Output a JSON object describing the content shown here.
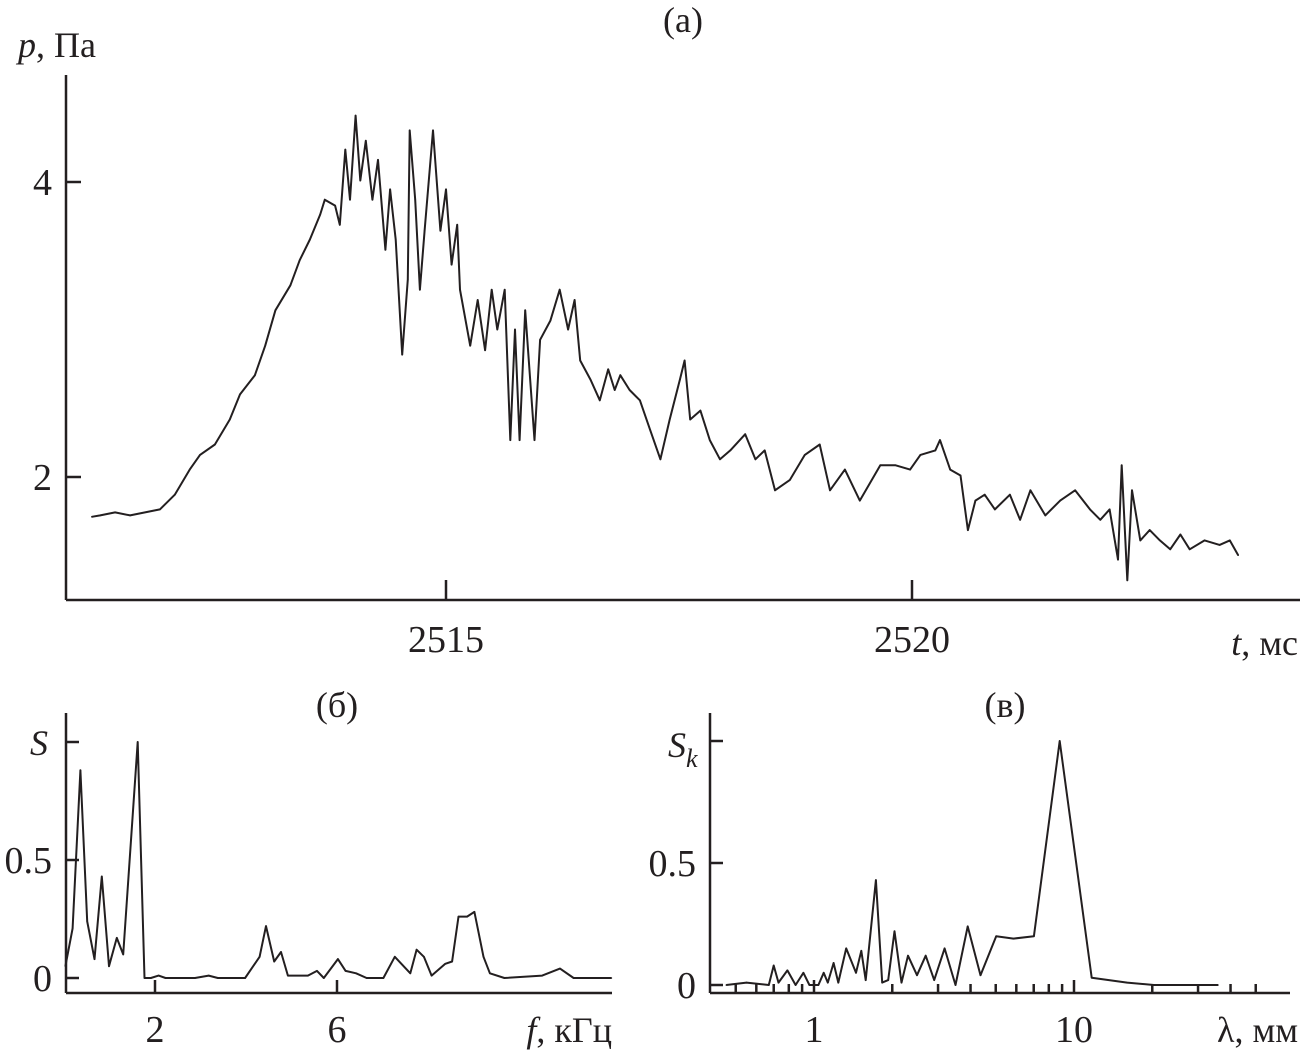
{
  "chart_data": [
    {
      "id": "a",
      "type": "line",
      "title": "(a)",
      "xlabel": {
        "var": "t",
        "unit": ", мс"
      },
      "ylabel": {
        "var": "p",
        "unit": ", Па"
      },
      "xlim": [
        2510.92,
        2524.16
      ],
      "ylim": [
        1.17,
        4.73
      ],
      "xticks": [
        2515,
        2520
      ],
      "yticks": [
        2,
        4
      ],
      "grid": false,
      "color": "#231f20",
      "points": [
        [
          2511.2,
          1.73
        ],
        [
          2511.29,
          1.74
        ],
        [
          2511.45,
          1.76
        ],
        [
          2511.61,
          1.74
        ],
        [
          2511.93,
          1.78
        ],
        [
          2512.09,
          1.88
        ],
        [
          2512.25,
          2.05
        ],
        [
          2512.36,
          2.15
        ],
        [
          2512.52,
          2.22
        ],
        [
          2512.68,
          2.39
        ],
        [
          2512.79,
          2.56
        ],
        [
          2512.95,
          2.69
        ],
        [
          2513.06,
          2.89
        ],
        [
          2513.17,
          3.13
        ],
        [
          2513.33,
          3.3
        ],
        [
          2513.43,
          3.47
        ],
        [
          2513.54,
          3.61
        ],
        [
          2513.65,
          3.78
        ],
        [
          2513.7,
          3.88
        ],
        [
          2513.81,
          3.84
        ],
        [
          2513.86,
          3.71
        ],
        [
          2513.92,
          4.22
        ],
        [
          2513.97,
          3.88
        ],
        [
          2514.03,
          4.45
        ],
        [
          2514.08,
          4.01
        ],
        [
          2514.14,
          4.28
        ],
        [
          2514.21,
          3.88
        ],
        [
          2514.27,
          4.15
        ],
        [
          2514.35,
          3.54
        ],
        [
          2514.4,
          3.95
        ],
        [
          2514.46,
          3.61
        ],
        [
          2514.53,
          2.83
        ],
        [
          2514.59,
          3.34
        ],
        [
          2514.61,
          4.35
        ],
        [
          2514.67,
          3.88
        ],
        [
          2514.72,
          3.27
        ],
        [
          2514.77,
          3.67
        ],
        [
          2514.86,
          4.35
        ],
        [
          2514.94,
          3.67
        ],
        [
          2515.0,
          3.95
        ],
        [
          2515.06,
          3.44
        ],
        [
          2515.12,
          3.71
        ],
        [
          2515.15,
          3.27
        ],
        [
          2515.26,
          2.89
        ],
        [
          2515.34,
          3.2
        ],
        [
          2515.42,
          2.86
        ],
        [
          2515.49,
          3.27
        ],
        [
          2515.55,
          3.0
        ],
        [
          2515.63,
          3.27
        ],
        [
          2515.69,
          2.25
        ],
        [
          2515.74,
          3.0
        ],
        [
          2515.79,
          2.25
        ],
        [
          2515.85,
          3.13
        ],
        [
          2515.95,
          2.25
        ],
        [
          2516.01,
          2.93
        ],
        [
          2516.12,
          3.06
        ],
        [
          2516.22,
          3.27
        ],
        [
          2516.31,
          3.0
        ],
        [
          2516.38,
          3.2
        ],
        [
          2516.44,
          2.79
        ],
        [
          2516.55,
          2.66
        ],
        [
          2516.65,
          2.52
        ],
        [
          2516.74,
          2.73
        ],
        [
          2516.81,
          2.59
        ],
        [
          2516.87,
          2.69
        ],
        [
          2516.97,
          2.59
        ],
        [
          2517.08,
          2.52
        ],
        [
          2517.19,
          2.32
        ],
        [
          2517.3,
          2.12
        ],
        [
          2517.4,
          2.39
        ],
        [
          2517.51,
          2.66
        ],
        [
          2517.56,
          2.79
        ],
        [
          2517.62,
          2.39
        ],
        [
          2517.73,
          2.45
        ],
        [
          2517.83,
          2.25
        ],
        [
          2517.94,
          2.12
        ],
        [
          2518.05,
          2.18
        ],
        [
          2518.21,
          2.29
        ],
        [
          2518.32,
          2.12
        ],
        [
          2518.42,
          2.18
        ],
        [
          2518.53,
          1.91
        ],
        [
          2518.69,
          1.98
        ],
        [
          2518.85,
          2.15
        ],
        [
          2519.01,
          2.22
        ],
        [
          2519.12,
          1.91
        ],
        [
          2519.28,
          2.05
        ],
        [
          2519.44,
          1.84
        ],
        [
          2519.66,
          2.08
        ],
        [
          2519.82,
          2.08
        ],
        [
          2519.98,
          2.05
        ],
        [
          2520.09,
          2.15
        ],
        [
          2520.25,
          2.18
        ],
        [
          2520.3,
          2.25
        ],
        [
          2520.41,
          2.05
        ],
        [
          2520.52,
          2.01
        ],
        [
          2520.6,
          1.64
        ],
        [
          2520.68,
          1.84
        ],
        [
          2520.78,
          1.88
        ],
        [
          2520.89,
          1.78
        ],
        [
          2521.05,
          1.88
        ],
        [
          2521.16,
          1.71
        ],
        [
          2521.27,
          1.91
        ],
        [
          2521.43,
          1.74
        ],
        [
          2521.59,
          1.84
        ],
        [
          2521.75,
          1.91
        ],
        [
          2521.91,
          1.78
        ],
        [
          2522.02,
          1.71
        ],
        [
          2522.12,
          1.78
        ],
        [
          2522.21,
          1.44
        ],
        [
          2522.25,
          2.08
        ],
        [
          2522.31,
          1.3
        ],
        [
          2522.36,
          1.91
        ],
        [
          2522.45,
          1.57
        ],
        [
          2522.55,
          1.64
        ],
        [
          2522.66,
          1.57
        ],
        [
          2522.77,
          1.51
        ],
        [
          2522.88,
          1.61
        ],
        [
          2522.98,
          1.51
        ],
        [
          2523.14,
          1.57
        ],
        [
          2523.3,
          1.54
        ],
        [
          2523.41,
          1.57
        ],
        [
          2523.5,
          1.47
        ]
      ]
    },
    {
      "id": "b",
      "type": "line",
      "title": "(б)",
      "xlabel": {
        "var": "f",
        "unit": ", кГц"
      },
      "ylabel": {
        "var": "S",
        "sub": ""
      },
      "xlim": [
        0,
        12.05
      ],
      "ylim": [
        0,
        1.06
      ],
      "xticks": [
        2,
        6
      ],
      "yticks": [
        0,
        0.5,
        1
      ],
      "yticklabels": [
        "0",
        "0.5",
        ""
      ],
      "grid": false,
      "color": "#231f20",
      "points": [
        [
          0.03,
          0.05
        ],
        [
          0.19,
          0.21
        ],
        [
          0.36,
          0.88
        ],
        [
          0.51,
          0.24
        ],
        [
          0.67,
          0.08
        ],
        [
          0.83,
          0.43
        ],
        [
          0.99,
          0.05
        ],
        [
          1.16,
          0.17
        ],
        [
          1.3,
          0.1
        ],
        [
          1.62,
          1.0
        ],
        [
          1.77,
          0
        ],
        [
          1.91,
          0
        ],
        [
          2.08,
          0.01
        ],
        [
          2.23,
          0
        ],
        [
          2.88,
          0
        ],
        [
          3.18,
          0.01
        ],
        [
          3.38,
          0
        ],
        [
          3.98,
          0
        ],
        [
          4.3,
          0.09
        ],
        [
          4.44,
          0.22
        ],
        [
          4.62,
          0.07
        ],
        [
          4.77,
          0.11
        ],
        [
          4.92,
          0.01
        ],
        [
          5.36,
          0.01
        ],
        [
          5.56,
          0.03
        ],
        [
          5.71,
          0
        ],
        [
          6.02,
          0.08
        ],
        [
          6.19,
          0.03
        ],
        [
          6.42,
          0.02
        ],
        [
          6.65,
          0
        ],
        [
          7.02,
          0
        ],
        [
          7.27,
          0.09
        ],
        [
          7.61,
          0.02
        ],
        [
          7.75,
          0.12
        ],
        [
          7.91,
          0.09
        ],
        [
          8.08,
          0.01
        ],
        [
          8.38,
          0.06
        ],
        [
          8.53,
          0.07
        ],
        [
          8.67,
          0.26
        ],
        [
          8.86,
          0.26
        ],
        [
          9.02,
          0.28
        ],
        [
          9.22,
          0.09
        ],
        [
          9.36,
          0.02
        ],
        [
          9.68,
          0
        ],
        [
          10.51,
          0.01
        ],
        [
          10.9,
          0.04
        ],
        [
          11.2,
          0
        ],
        [
          11.8,
          0
        ],
        [
          12.03,
          0
        ]
      ]
    },
    {
      "id": "c",
      "type": "line",
      "title": "(в)",
      "xlabel": {
        "var": "λ",
        "unit": ", мм"
      },
      "ylabel": {
        "var": "S",
        "sub": "k"
      },
      "xscale": "log",
      "xlim": [
        0.4,
        68
      ],
      "ylim": [
        0,
        1.12
      ],
      "xticks": [
        1,
        10
      ],
      "xminorticks": [
        0.5,
        0.6,
        0.7,
        0.8,
        0.9,
        2,
        3,
        4,
        5,
        6,
        7,
        8,
        9,
        20,
        30,
        40,
        50
      ],
      "yticks": [
        0,
        0.5,
        1
      ],
      "yticklabels": [
        "0",
        "0.5",
        ""
      ],
      "grid": false,
      "color": "#231f20",
      "points": [
        [
          0.46,
          0
        ],
        [
          0.55,
          0.01
        ],
        [
          0.67,
          0
        ],
        [
          0.7,
          0.08
        ],
        [
          0.73,
          0.01
        ],
        [
          0.79,
          0.06
        ],
        [
          0.85,
          0
        ],
        [
          0.91,
          0.05
        ],
        [
          0.96,
          0
        ],
        [
          1.04,
          0
        ],
        [
          1.09,
          0.05
        ],
        [
          1.13,
          0.01
        ],
        [
          1.19,
          0.09
        ],
        [
          1.24,
          0.01
        ],
        [
          1.33,
          0.15
        ],
        [
          1.45,
          0.05
        ],
        [
          1.52,
          0.14
        ],
        [
          1.58,
          0.02
        ],
        [
          1.73,
          0.43
        ],
        [
          1.83,
          0.01
        ],
        [
          1.93,
          0.02
        ],
        [
          2.04,
          0.22
        ],
        [
          2.17,
          0.01
        ],
        [
          2.3,
          0.12
        ],
        [
          2.49,
          0.04
        ],
        [
          2.69,
          0.12
        ],
        [
          2.9,
          0.02
        ],
        [
          3.18,
          0.15
        ],
        [
          3.5,
          0
        ],
        [
          3.9,
          0.24
        ],
        [
          4.37,
          0.04
        ],
        [
          5.02,
          0.2
        ],
        [
          5.85,
          0.19
        ],
        [
          7.01,
          0.2
        ],
        [
          8.81,
          1.0
        ],
        [
          11.7,
          0.03
        ],
        [
          16.0,
          0.01
        ],
        [
          20.3,
          0
        ],
        [
          35.8,
          0
        ]
      ]
    }
  ]
}
